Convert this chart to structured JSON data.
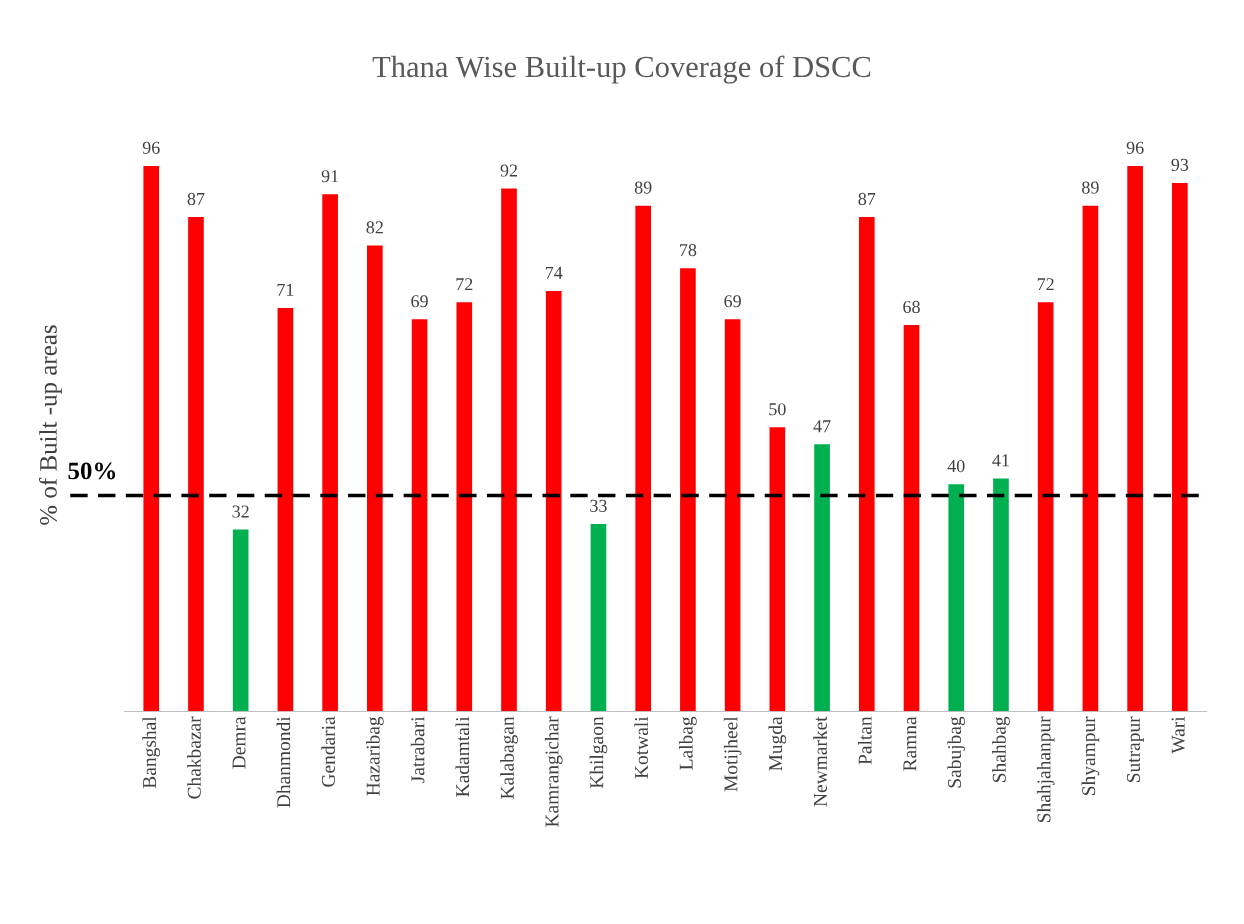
{
  "chart_data": {
    "type": "bar",
    "title": "Thana Wise Built-up Coverage of DSCC",
    "ylabel": "% of Built -up areas",
    "categories": [
      "Bangshal",
      "Chakbazar",
      "Demra",
      "Dhanmondi",
      "Gendaria",
      "Hazaribag",
      "Jatrabari",
      "Kadamtali",
      "Kalabagan",
      "Kamrangichar",
      "Khilgaon",
      "Kotwali",
      "Lalbag",
      "Motijheel",
      "Mugda",
      "Newmarket",
      "Paltan",
      "Ramna",
      "Sabujbag",
      "Shahbag",
      "Shahjahanpur",
      "Shyampur",
      "Sutrapur",
      "Wari"
    ],
    "values": [
      96,
      87,
      32,
      71,
      91,
      82,
      69,
      72,
      92,
      74,
      33,
      89,
      78,
      69,
      50,
      47,
      87,
      68,
      40,
      41,
      72,
      89,
      96,
      93
    ],
    "colors": [
      "#ff0000",
      "#ff0000",
      "#00b050",
      "#ff0000",
      "#ff0000",
      "#ff0000",
      "#ff0000",
      "#ff0000",
      "#ff0000",
      "#ff0000",
      "#00b050",
      "#ff0000",
      "#ff0000",
      "#ff0000",
      "#ff0000",
      "#00b050",
      "#ff0000",
      "#ff0000",
      "#00b050",
      "#00b050",
      "#ff0000",
      "#ff0000",
      "#ff0000",
      "#ff0000"
    ],
    "annotations": [
      "50%"
    ],
    "tick_labels": "x",
    "data_labels": true,
    "grid": false,
    "legend": false,
    "ref_lines": [
      {
        "axis": "y",
        "value": 38,
        "color": "#000000",
        "line_style": "dashed"
      }
    ]
  }
}
